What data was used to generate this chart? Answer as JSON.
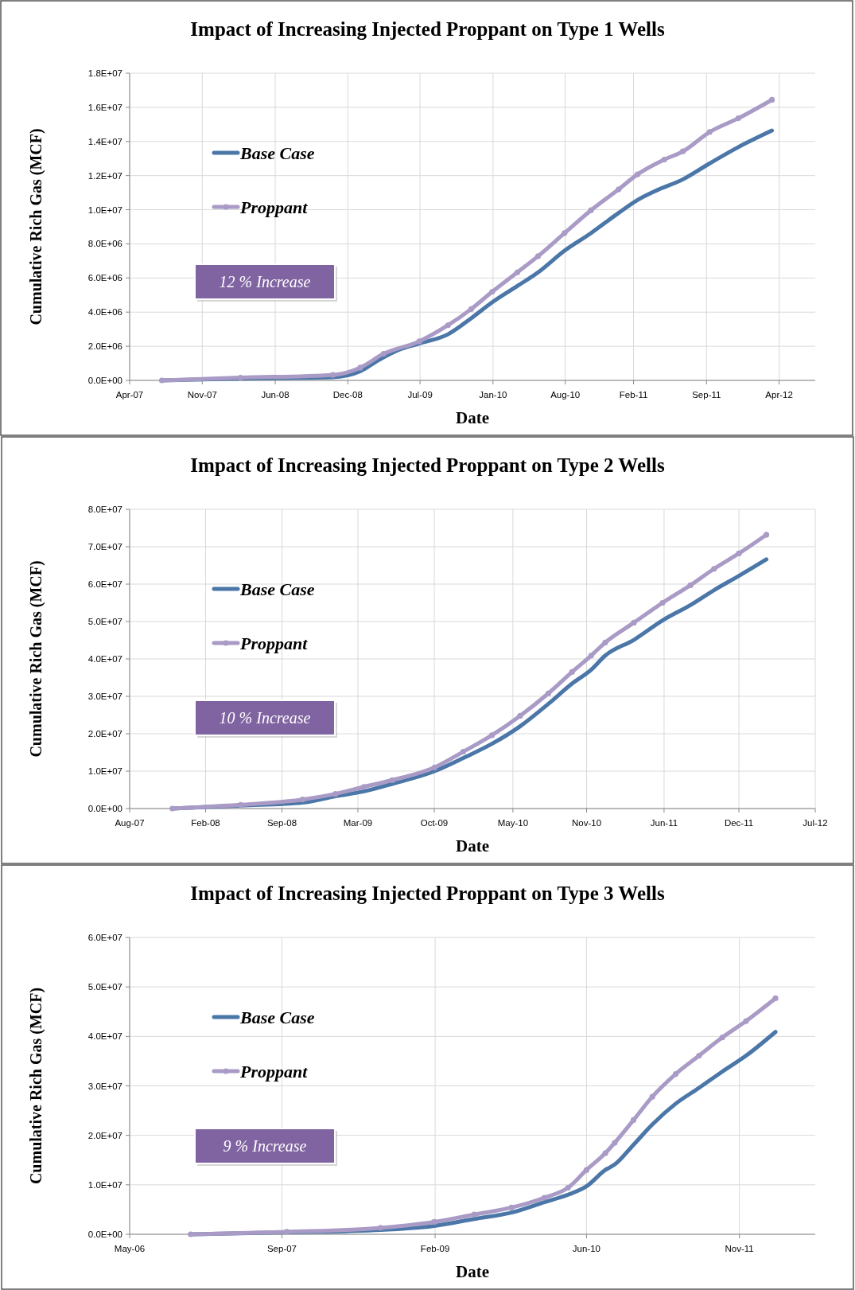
{
  "chart_data": [
    {
      "type": "line",
      "title": "Impact of Increasing Injected Proppant on Type 1 Wells",
      "xlabel": "Date",
      "ylabel": "Cumulative Rich Gas (MCF)",
      "annotations": [
        "12 % Increase"
      ],
      "legend": "top left",
      "grid": true,
      "line_style": "solid",
      "xlim": [
        "2007-04-21",
        "2012-07-20"
      ],
      "xticks": [
        {
          "value": "2007-04-21",
          "label": "Apr-07"
        },
        {
          "value": "2007-11-10",
          "label": "Nov-07"
        },
        {
          "value": "2008-06-01",
          "label": "Jun-08"
        },
        {
          "value": "2008-12-21",
          "label": "Dec-08"
        },
        {
          "value": "2009-07-11",
          "label": "Jul-09"
        },
        {
          "value": "2010-01-31",
          "label": "Jan-10"
        },
        {
          "value": "2010-08-21",
          "label": "Aug-10"
        },
        {
          "value": "2011-02-28",
          "label": "Feb-11"
        },
        {
          "value": "2011-09-20",
          "label": "Sep-11"
        },
        {
          "value": "2012-04-10",
          "label": "Apr-12"
        }
      ],
      "ylim": [
        0,
        18000000
      ],
      "yticks": [
        {
          "value": 0,
          "label": "0.0E+00"
        },
        {
          "value": 2000000,
          "label": "2.0E+06"
        },
        {
          "value": 4000000,
          "label": "4.0E+06"
        },
        {
          "value": 6000000,
          "label": "6.0E+06"
        },
        {
          "value": 8000000,
          "label": "8.0E+06"
        },
        {
          "value": 10000000,
          "label": "1.0E+07"
        },
        {
          "value": 12000000,
          "label": "1.2E+07"
        },
        {
          "value": 14000000,
          "label": "1.4E+07"
        },
        {
          "value": 16000000,
          "label": "1.6E+07"
        },
        {
          "value": 18000000,
          "label": "1.8E+07"
        }
      ],
      "series": [
        {
          "name": "Base Case",
          "color": "#4a76a8",
          "marker": "none",
          "x": [
            "2007-07-20",
            "2008-02-25",
            "2008-11-09",
            "2009-01-25",
            "2009-03-18",
            "2009-05-08",
            "2009-07-09",
            "2009-09-27",
            "2009-12-01",
            "2010-01-29",
            "2010-04-09",
            "2010-06-06",
            "2010-08-19",
            "2010-11-01",
            "2011-01-17",
            "2011-03-11",
            "2011-04-30",
            "2011-07-16",
            "2011-09-29",
            "2011-12-18",
            "2012-03-21"
          ],
          "values": [
            0,
            110000,
            190000,
            540000,
            1200000,
            1750000,
            2160000,
            2700000,
            3640000,
            4580000,
            5530000,
            6330000,
            7600000,
            8630000,
            9810000,
            10570000,
            11100000,
            11780000,
            12720000,
            13670000,
            14640000
          ]
        },
        {
          "name": "Proppant",
          "color": "#a99bc6",
          "marker": "circle",
          "x": [
            "2007-07-20",
            "2008-02-25",
            "2008-11-09",
            "2009-01-25",
            "2009-03-31",
            "2009-07-09",
            "2009-09-27",
            "2009-12-01",
            "2010-01-29",
            "2010-04-09",
            "2010-06-06",
            "2010-08-19",
            "2010-11-01",
            "2011-01-17",
            "2011-03-11",
            "2011-05-25",
            "2011-07-16",
            "2011-09-29",
            "2011-12-18",
            "2012-03-21"
          ],
          "values": [
            0,
            160000,
            320000,
            750000,
            1560000,
            2290000,
            3230000,
            4180000,
            5200000,
            6330000,
            7280000,
            8630000,
            9970000,
            11190000,
            12070000,
            12940000,
            13420000,
            14560000,
            15360000,
            16440000
          ]
        }
      ]
    },
    {
      "type": "line",
      "title": "Impact of Increasing Injected Proppant on Type 2 Wells",
      "xlabel": "Date",
      "ylabel": "Cumulative Rich Gas (MCF)",
      "annotations": [
        "10 % Increase"
      ],
      "legend": "top left",
      "grid": true,
      "line_style": "solid",
      "xlim": [
        "2007-08-01",
        "2012-07-01"
      ],
      "xticks": [
        {
          "value": "2007-08-01",
          "label": "Aug-07"
        },
        {
          "value": "2008-02-16",
          "label": "Feb-08"
        },
        {
          "value": "2008-09-03",
          "label": "Sep-08"
        },
        {
          "value": "2009-03-21",
          "label": "Mar-09"
        },
        {
          "value": "2009-10-07",
          "label": "Oct-09"
        },
        {
          "value": "2010-05-01",
          "label": "May-10"
        },
        {
          "value": "2010-11-10",
          "label": "Nov-10"
        },
        {
          "value": "2011-06-01",
          "label": "Jun-11"
        },
        {
          "value": "2011-12-14",
          "label": "Dec-11"
        },
        {
          "value": "2012-07-01",
          "label": "Jul-12"
        }
      ],
      "ylim": [
        0,
        80000000
      ],
      "yticks": [
        {
          "value": 0,
          "label": "0.0E+00"
        },
        {
          "value": 10000000,
          "label": "1.0E+07"
        },
        {
          "value": 20000000,
          "label": "2.0E+07"
        },
        {
          "value": 30000000,
          "label": "3.0E+07"
        },
        {
          "value": 40000000,
          "label": "4.0E+07"
        },
        {
          "value": 50000000,
          "label": "5.0E+07"
        },
        {
          "value": 60000000,
          "label": "6.0E+07"
        },
        {
          "value": 70000000,
          "label": "7.0E+07"
        },
        {
          "value": 80000000,
          "label": "8.0E+07"
        }
      ],
      "series": [
        {
          "name": "Base Case",
          "color": "#4a76a8",
          "marker": "none",
          "x": [
            "2007-11-21",
            "2008-05-18",
            "2008-10-27",
            "2009-01-21",
            "2009-04-06",
            "2009-06-19",
            "2009-10-08",
            "2009-12-22",
            "2010-03-07",
            "2010-05-20",
            "2010-08-02",
            "2010-10-03",
            "2010-11-22",
            "2010-12-29",
            "2011-03-14",
            "2011-05-28",
            "2011-08-09",
            "2011-10-10",
            "2011-12-14",
            "2012-02-24"
          ],
          "values": [
            0,
            800000,
            1600000,
            3300000,
            4600000,
            6600000,
            10000000,
            13500000,
            17300000,
            22000000,
            28000000,
            33400000,
            37100000,
            40900000,
            45100000,
            50300000,
            54400000,
            58400000,
            62200000,
            66600000
          ]
        },
        {
          "name": "Proppant",
          "color": "#a99bc6",
          "marker": "circle",
          "x": [
            "2007-11-21",
            "2008-05-18",
            "2008-10-27",
            "2009-01-21",
            "2009-04-06",
            "2009-06-19",
            "2009-10-08",
            "2009-12-22",
            "2010-03-07",
            "2010-05-20",
            "2010-08-02",
            "2010-10-03",
            "2010-11-22",
            "2010-12-29",
            "2011-03-14",
            "2011-05-28",
            "2011-08-09",
            "2011-10-10",
            "2011-12-14",
            "2012-02-24"
          ],
          "values": [
            0,
            1000000,
            2400000,
            3900000,
            5800000,
            7600000,
            11000000,
            15200000,
            19600000,
            24800000,
            30800000,
            36500000,
            40900000,
            44400000,
            49700000,
            55000000,
            59700000,
            64100000,
            68200000,
            73200000
          ]
        }
      ]
    },
    {
      "type": "line",
      "title": "Impact of Increasing Injected Proppant on Type 3 Wells",
      "xlabel": "Date",
      "ylabel": "Cumulative Rich Gas (MCF)",
      "annotations": [
        "9 % Increase"
      ],
      "legend": "top left",
      "grid": true,
      "line_style": "solid",
      "xlim": [
        "2006-05-01",
        "2012-07-08"
      ],
      "xticks": [
        {
          "value": "2006-05-01",
          "label": "May-06"
        },
        {
          "value": "2007-09-15",
          "label": "Sep-07"
        },
        {
          "value": "2009-02-01",
          "label": "Feb-09"
        },
        {
          "value": "2010-06-15",
          "label": "Jun-10"
        },
        {
          "value": "2011-11-01",
          "label": "Nov-11"
        }
      ],
      "ylim": [
        0,
        60000000
      ],
      "yticks": [
        {
          "value": 0,
          "label": "0.0E+00"
        },
        {
          "value": 10000000,
          "label": "1.0E+07"
        },
        {
          "value": 20000000,
          "label": "2.0E+07"
        },
        {
          "value": 30000000,
          "label": "3.0E+07"
        },
        {
          "value": 40000000,
          "label": "4.0E+07"
        },
        {
          "value": 50000000,
          "label": "5.0E+07"
        },
        {
          "value": 60000000,
          "label": "6.0E+07"
        }
      ],
      "series": [
        {
          "name": "Base Case",
          "color": "#4a76a8",
          "marker": "none",
          "x": [
            "2006-11-18",
            "2007-10-01",
            "2008-08-05",
            "2009-01-29",
            "2009-06-10",
            "2009-10-11",
            "2010-01-27",
            "2010-04-15",
            "2010-06-15",
            "2010-08-16",
            "2010-09-16",
            "2010-11-17",
            "2011-01-18",
            "2011-04-05",
            "2011-06-21",
            "2011-09-06",
            "2011-11-23",
            "2012-02-28"
          ],
          "values": [
            0,
            400000,
            900000,
            1700000,
            3100000,
            4400000,
            6500000,
            8000000,
            9700000,
            13000000,
            14100000,
            18100000,
            22200000,
            26400000,
            29600000,
            32900000,
            36100000,
            40900000
          ]
        },
        {
          "name": "Proppant",
          "color": "#a99bc6",
          "marker": "circle",
          "x": [
            "2006-11-18",
            "2007-10-01",
            "2008-08-05",
            "2009-01-29",
            "2009-06-10",
            "2009-10-11",
            "2010-01-27",
            "2010-04-15",
            "2010-06-15",
            "2010-08-16",
            "2010-09-16",
            "2010-11-17",
            "2011-01-18",
            "2011-04-05",
            "2011-06-21",
            "2011-09-06",
            "2011-11-23",
            "2012-02-28"
          ],
          "values": [
            0,
            500000,
            1300000,
            2500000,
            4000000,
            5400000,
            7400000,
            9400000,
            13000000,
            16400000,
            18500000,
            23100000,
            27800000,
            32400000,
            36100000,
            39800000,
            43100000,
            47700000
          ]
        }
      ]
    }
  ]
}
